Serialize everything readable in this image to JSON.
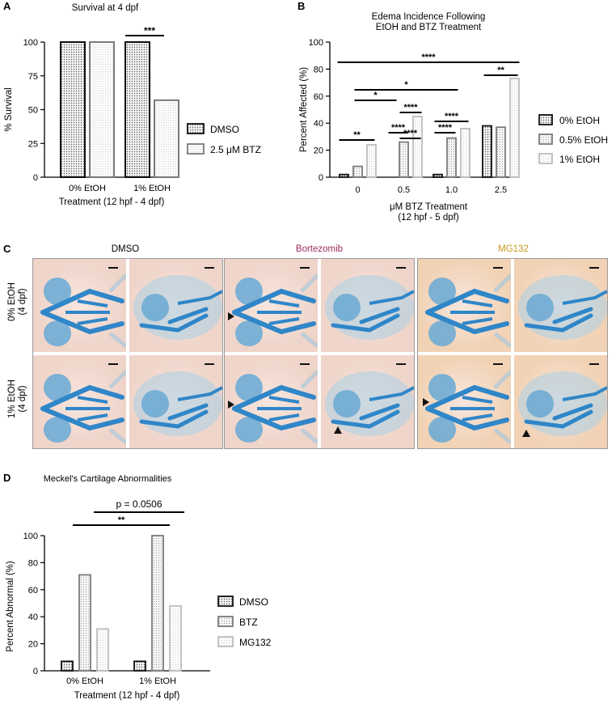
{
  "panels": {
    "a_letter": "A",
    "b_letter": "B",
    "c_letter": "C",
    "d_letter": "D"
  },
  "colors": {
    "bar_dark": "#111111",
    "bar_mid": "#7a7a7a",
    "bar_light": "#bdbdbd",
    "bortezomib_label": "#9b2a5e",
    "mg132_label": "#c9961a",
    "photo_bg": "#f2d6c8",
    "stain_blue": "#2f86c8"
  },
  "chart_data": [
    {
      "type": "bar",
      "title": "Survival at 4 dpf",
      "xlabel": "Treatment (12 hpf - 4 dpf)",
      "ylabel": "% Survival",
      "ylim": [
        0,
        100
      ],
      "yticks": [
        "0",
        "25",
        "50",
        "75",
        "100"
      ],
      "categories": [
        "0% EtOH",
        "1% EtOH"
      ],
      "series": [
        {
          "name": "DMSO",
          "values": [
            100,
            100
          ]
        },
        {
          "name": "2.5 μM BTZ",
          "values": [
            100,
            57
          ]
        }
      ],
      "significance": [
        {
          "label": "***"
        }
      ],
      "legend": "right"
    },
    {
      "type": "bar",
      "title": "Edema Incidence Following EtOH and BTZ Treatment",
      "title_lines": [
        "Edema Incidence Following",
        "EtOH and BTZ Treatment"
      ],
      "xlabel_lines": [
        "μM BTZ Treatment",
        "(12 hpf - 5 dpf)"
      ],
      "ylabel": "Percent Affected (%)",
      "ylim": [
        0,
        100
      ],
      "yticks": [
        "0",
        "20",
        "40",
        "60",
        "80",
        "100"
      ],
      "categories": [
        "0",
        "0.5",
        "1.0",
        "2.5"
      ],
      "series": [
        {
          "name": "0% EtOH",
          "values": [
            2,
            0,
            2,
            38
          ]
        },
        {
          "name": "0.5% EtOH",
          "values": [
            8,
            26,
            29,
            37
          ]
        },
        {
          "name": "1% EtOH",
          "values": [
            24,
            45,
            36,
            73
          ]
        }
      ],
      "significance": [
        {
          "label": "****"
        },
        {
          "label": "**"
        },
        {
          "label": "*"
        },
        {
          "label": "*"
        },
        {
          "label": "****"
        },
        {
          "label": "**"
        },
        {
          "label": "****"
        },
        {
          "label": "****"
        },
        {
          "label": "****"
        },
        {
          "label": "****"
        }
      ],
      "legend": "right"
    },
    {
      "type": "bar",
      "title": "Meckel's Cartilage Abnormalities",
      "xlabel": "Treatment (12 hpf - 4 dpf)",
      "ylabel": "Percent Abnormal (%)",
      "ylim": [
        0,
        100
      ],
      "yticks": [
        "0",
        "20",
        "40",
        "60",
        "80",
        "100"
      ],
      "categories": [
        "0% EtOH",
        "1% EtOH"
      ],
      "series": [
        {
          "name": "DMSO",
          "values": [
            7,
            7
          ]
        },
        {
          "name": "BTZ",
          "values": [
            71,
            100
          ]
        },
        {
          "name": "MG132",
          "values": [
            31,
            48
          ]
        }
      ],
      "significance": [
        {
          "label": "p = 0.0506"
        },
        {
          "label": "**"
        }
      ],
      "legend": "right"
    }
  ],
  "panel_c": {
    "columns": [
      "DMSO",
      "Bortezomib",
      "MG132"
    ],
    "rows": [
      "0% EtOH (4 dpf)",
      "1% EtOH (4 dpf)"
    ],
    "row_lines": [
      [
        "0% EtOH",
        "(4 dpf)"
      ],
      [
        "1% EtOH",
        "(4 dpf)"
      ]
    ]
  }
}
